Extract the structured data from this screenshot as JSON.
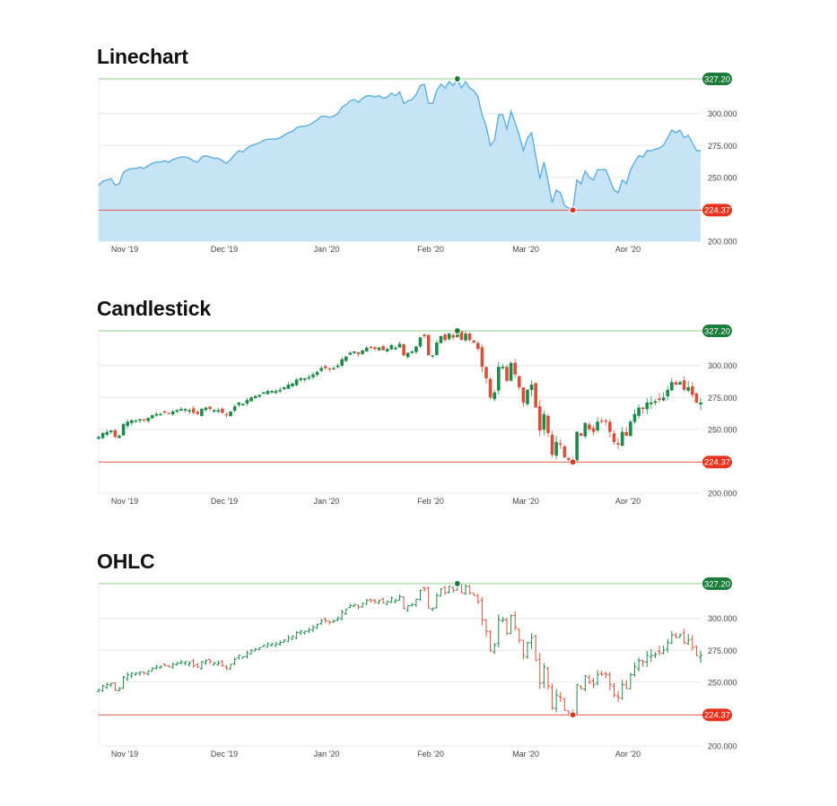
{
  "colors": {
    "line": "#5aaee0",
    "area": "#c7e4f6",
    "up": "#1e8a4a",
    "down": "#d9503a",
    "max_line": "#8fcf8f",
    "min_line": "#e05a4a",
    "max_badge": "#1b7d3a",
    "min_badge": "#e8321e",
    "grid": "#e6e6e6",
    "axis_text": "#444444"
  },
  "chart_data": [
    {
      "type": "area",
      "title": "Linechart",
      "x_labels": [
        "Nov '19",
        "Dec '19",
        "Jan '20",
        "Feb '20",
        "Mar '20",
        "Apr '20"
      ],
      "y_ticks": [
        "300.000",
        "275.000",
        "250.000",
        "200.000"
      ],
      "ylim": [
        200,
        327.2
      ],
      "max_value": 327.2,
      "max_label": "327.20",
      "min_value": 224.37,
      "min_label": "224.37",
      "grid": true,
      "legend": "none"
    },
    {
      "type": "candlestick",
      "title": "Candlestick",
      "x_labels": [
        "Nov '19",
        "Dec '19",
        "Jan '20",
        "Feb '20",
        "Mar '20",
        "Apr '20"
      ],
      "y_ticks": [
        "300.000",
        "275.000",
        "250.000",
        "200.000"
      ],
      "ylim": [
        200,
        327.2
      ],
      "max_value": 327.2,
      "max_label": "327.20",
      "min_value": 224.37,
      "min_label": "224.37",
      "grid": true,
      "legend": "none"
    },
    {
      "type": "ohlc",
      "title": "OHLC",
      "x_labels": [
        "Nov '19",
        "Dec '19",
        "Jan '20",
        "Feb '20",
        "Mar '20",
        "Apr '20"
      ],
      "y_ticks": [
        "300.000",
        "275.000",
        "250.000",
        "200.000"
      ],
      "ylim": [
        200,
        327.2
      ],
      "max_value": 327.2,
      "max_label": "327.20",
      "min_value": 224.37,
      "min_label": "224.37",
      "grid": true,
      "legend": "none"
    }
  ],
  "series_close": [
    244,
    247,
    248,
    249,
    244,
    245,
    254,
    256,
    257,
    257,
    258,
    257,
    259,
    261,
    262,
    262,
    263,
    262,
    264,
    265,
    266,
    266,
    265,
    263,
    262,
    266,
    267,
    266,
    265,
    265,
    263,
    261,
    264,
    268,
    271,
    270,
    273,
    275,
    276,
    277,
    279,
    280,
    280,
    280,
    281,
    283,
    285,
    286,
    289,
    290,
    290,
    291,
    293,
    295,
    298,
    298,
    297,
    298,
    300,
    305,
    307,
    310,
    311,
    309,
    312,
    314,
    314,
    313,
    314,
    312,
    313,
    316,
    314,
    317,
    308,
    310,
    311,
    315,
    322,
    323,
    308,
    308,
    318,
    323,
    320,
    325,
    322,
    327.2,
    320,
    325,
    320,
    318,
    313,
    299,
    290,
    275,
    279,
    299,
    299,
    288,
    302,
    293,
    283,
    271,
    281,
    285,
    267,
    249,
    262,
    247,
    230,
    240,
    238,
    228,
    226,
    224.37,
    248,
    245,
    255,
    250,
    248,
    256,
    256,
    256,
    248,
    240,
    238,
    248,
    245,
    256,
    262,
    267,
    266,
    271,
    271,
    272,
    273,
    275,
    281,
    287,
    285,
    287,
    281,
    283,
    277,
    271,
    271
  ]
}
